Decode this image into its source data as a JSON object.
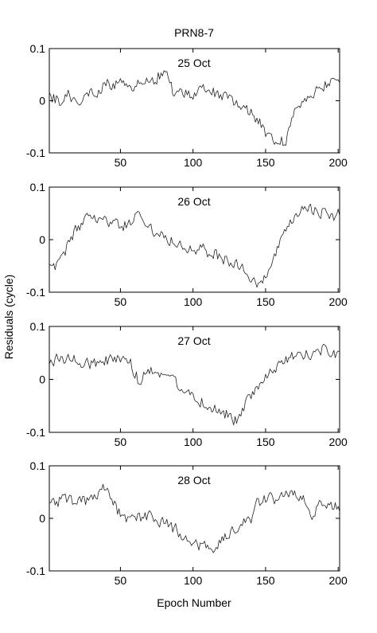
{
  "chart_data": {
    "type": "line",
    "title": "PRN8-7",
    "xlabel": "Epoch Number",
    "ylabel": "Residuals (cycle)",
    "xlim": [
      1,
      201
    ],
    "ylim": [
      -0.1,
      0.1
    ],
    "x_ticks": [
      50,
      100,
      150,
      200
    ],
    "x_tick_labels": [
      "50",
      "100",
      "150",
      "200"
    ],
    "y_ticks": [
      0.1,
      0,
      -0.1
    ],
    "y_tick_labels": [
      "0.1",
      "0",
      "-0.1"
    ],
    "grid": false,
    "panels": [
      {
        "title": "25 Oct",
        "anchors": [
          [
            1,
            0.005
          ],
          [
            8,
            0.0
          ],
          [
            14,
            0.01
          ],
          [
            20,
            0.0
          ],
          [
            26,
            0.01
          ],
          [
            32,
            0.015
          ],
          [
            40,
            0.03
          ],
          [
            48,
            0.035
          ],
          [
            55,
            0.03
          ],
          [
            62,
            0.03
          ],
          [
            70,
            0.035
          ],
          [
            78,
            0.05
          ],
          [
            82,
            0.045
          ],
          [
            86,
            0.02
          ],
          [
            92,
            0.015
          ],
          [
            100,
            0.01
          ],
          [
            108,
            0.02
          ],
          [
            116,
            0.015
          ],
          [
            122,
            0.005
          ],
          [
            128,
            0.0
          ],
          [
            134,
            -0.005
          ],
          [
            140,
            -0.025
          ],
          [
            145,
            -0.04
          ],
          [
            150,
            -0.06
          ],
          [
            155,
            -0.07
          ],
          [
            160,
            -0.08
          ],
          [
            164,
            -0.075
          ],
          [
            168,
            -0.04
          ],
          [
            172,
            -0.01
          ],
          [
            178,
            0.005
          ],
          [
            184,
            0.02
          ],
          [
            190,
            0.03
          ],
          [
            196,
            0.04
          ],
          [
            201,
            0.045
          ]
        ]
      },
      {
        "title": "26 Oct",
        "anchors": [
          [
            1,
            -0.045
          ],
          [
            5,
            -0.055
          ],
          [
            10,
            -0.04
          ],
          [
            15,
            0.0
          ],
          [
            20,
            0.02
          ],
          [
            25,
            0.035
          ],
          [
            30,
            0.045
          ],
          [
            35,
            0.04
          ],
          [
            40,
            0.035
          ],
          [
            45,
            0.03
          ],
          [
            50,
            0.025
          ],
          [
            55,
            0.03
          ],
          [
            60,
            0.04
          ],
          [
            63,
            0.055
          ],
          [
            66,
            0.035
          ],
          [
            72,
            0.02
          ],
          [
            78,
            0.01
          ],
          [
            85,
            0.0
          ],
          [
            92,
            -0.01
          ],
          [
            100,
            -0.015
          ],
          [
            108,
            -0.02
          ],
          [
            116,
            -0.03
          ],
          [
            124,
            -0.04
          ],
          [
            130,
            -0.045
          ],
          [
            136,
            -0.06
          ],
          [
            140,
            -0.08
          ],
          [
            145,
            -0.09
          ],
          [
            150,
            -0.07
          ],
          [
            155,
            -0.04
          ],
          [
            160,
            -0.01
          ],
          [
            165,
            0.02
          ],
          [
            170,
            0.04
          ],
          [
            175,
            0.055
          ],
          [
            180,
            0.06
          ],
          [
            186,
            0.055
          ],
          [
            192,
            0.05
          ],
          [
            196,
            0.04
          ],
          [
            201,
            0.05
          ]
        ]
      },
      {
        "title": "27 Oct",
        "anchors": [
          [
            1,
            0.03
          ],
          [
            10,
            0.04
          ],
          [
            20,
            0.035
          ],
          [
            30,
            0.03
          ],
          [
            40,
            0.035
          ],
          [
            50,
            0.04
          ],
          [
            54,
            0.035
          ],
          [
            58,
            0.025
          ],
          [
            62,
            0.0
          ],
          [
            64,
            -0.01
          ],
          [
            68,
            0.02
          ],
          [
            75,
            0.015
          ],
          [
            82,
            0.01
          ],
          [
            88,
            -0.005
          ],
          [
            95,
            -0.02
          ],
          [
            102,
            -0.035
          ],
          [
            110,
            -0.05
          ],
          [
            118,
            -0.06
          ],
          [
            124,
            -0.065
          ],
          [
            128,
            -0.08
          ],
          [
            132,
            -0.07
          ],
          [
            138,
            -0.04
          ],
          [
            144,
            -0.015
          ],
          [
            150,
            0.0
          ],
          [
            156,
            0.02
          ],
          [
            162,
            0.03
          ],
          [
            170,
            0.045
          ],
          [
            180,
            0.05
          ],
          [
            190,
            0.055
          ],
          [
            201,
            0.045
          ]
        ]
      },
      {
        "title": "28 Oct",
        "anchors": [
          [
            1,
            0.03
          ],
          [
            10,
            0.035
          ],
          [
            20,
            0.03
          ],
          [
            30,
            0.035
          ],
          [
            38,
            0.055
          ],
          [
            44,
            0.04
          ],
          [
            48,
            0.015
          ],
          [
            52,
            -0.005
          ],
          [
            58,
            0.0
          ],
          [
            66,
            0.005
          ],
          [
            74,
            0.0
          ],
          [
            82,
            -0.01
          ],
          [
            90,
            -0.025
          ],
          [
            98,
            -0.045
          ],
          [
            104,
            -0.05
          ],
          [
            107,
            -0.035
          ],
          [
            110,
            -0.06
          ],
          [
            116,
            -0.055
          ],
          [
            122,
            -0.04
          ],
          [
            128,
            -0.02
          ],
          [
            134,
            -0.01
          ],
          [
            140,
            0.0
          ],
          [
            144,
            0.03
          ],
          [
            150,
            0.04
          ],
          [
            158,
            0.035
          ],
          [
            164,
            0.045
          ],
          [
            170,
            0.05
          ],
          [
            176,
            0.04
          ],
          [
            182,
            0.01
          ],
          [
            186,
            0.025
          ],
          [
            192,
            0.03
          ],
          [
            196,
            0.02
          ],
          [
            201,
            0.02
          ]
        ]
      }
    ]
  }
}
